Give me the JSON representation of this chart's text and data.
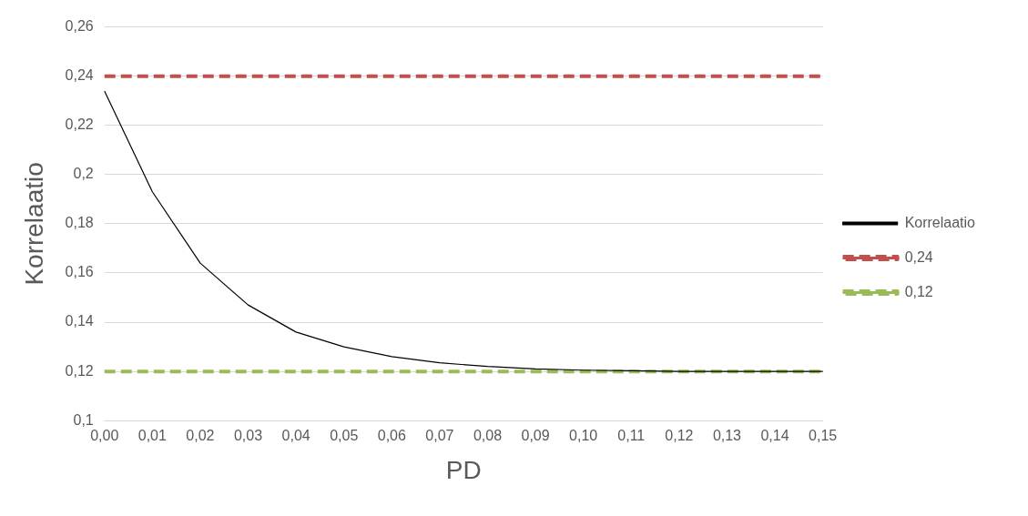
{
  "chart_data": {
    "type": "line",
    "xlabel": "PD",
    "ylabel": "Korrelaatio",
    "categories": [
      "0,00",
      "0,01",
      "0,02",
      "0,03",
      "0,04",
      "0,05",
      "0,06",
      "0,07",
      "0,08",
      "0,09",
      "0,10",
      "0,11",
      "0,12",
      "0,13",
      "0,14",
      "0,15"
    ],
    "series": [
      {
        "name": "Korrelaatio",
        "color": "#000000",
        "line_style": "solid",
        "values": [
          0.234,
          0.193,
          0.164,
          0.147,
          0.136,
          0.13,
          0.126,
          0.1235,
          0.122,
          0.121,
          0.1205,
          0.1203,
          0.12,
          0.12,
          0.12,
          0.12
        ]
      },
      {
        "name": "0,24",
        "color": "#c0504d",
        "line_style": "dashed",
        "values": [
          0.24,
          0.24,
          0.24,
          0.24,
          0.24,
          0.24,
          0.24,
          0.24,
          0.24,
          0.24,
          0.24,
          0.24,
          0.24,
          0.24,
          0.24,
          0.24
        ]
      },
      {
        "name": "0,12",
        "color": "#9bbb59",
        "line_style": "dashed",
        "values": [
          0.12,
          0.12,
          0.12,
          0.12,
          0.12,
          0.12,
          0.12,
          0.12,
          0.12,
          0.12,
          0.12,
          0.12,
          0.12,
          0.12,
          0.12,
          0.12
        ]
      }
    ],
    "ylim": [
      0.1,
      0.26
    ],
    "yticks": [
      {
        "value": 0.1,
        "label": "0,1"
      },
      {
        "value": 0.12,
        "label": "0,12"
      },
      {
        "value": 0.14,
        "label": "0,14"
      },
      {
        "value": 0.16,
        "label": "0,16"
      },
      {
        "value": 0.18,
        "label": "0,18"
      },
      {
        "value": 0.2,
        "label": "0,2"
      },
      {
        "value": 0.22,
        "label": "0,22"
      },
      {
        "value": 0.24,
        "label": "0,24"
      },
      {
        "value": 0.26,
        "label": "0,26"
      }
    ],
    "grid": "y",
    "legend": "right",
    "marker": "none"
  }
}
